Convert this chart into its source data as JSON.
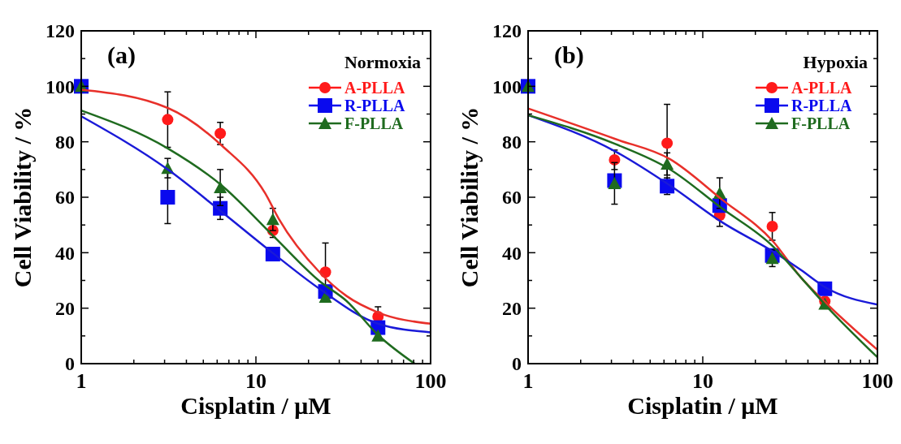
{
  "chart_data": [
    {
      "type": "scatter",
      "xlabel": "Cisplatin / μM",
      "ylabel": "Cell Viability / %",
      "legend_title": "Normoxia",
      "annotations": [
        "(a)"
      ],
      "log": "x",
      "legend": "top right",
      "grid": false,
      "xlim": [
        1,
        100
      ],
      "xticks": [
        1,
        {
          "value": 2,
          "label": null
        },
        {
          "value": 3,
          "label": null
        },
        {
          "value": 4,
          "label": null
        },
        {
          "value": 5,
          "label": null
        },
        {
          "value": 6,
          "label": null
        },
        {
          "value": 7,
          "label": null
        },
        {
          "value": 8,
          "label": null
        },
        {
          "value": 9,
          "label": null
        },
        10,
        {
          "value": 20,
          "label": null
        },
        {
          "value": 30,
          "label": null
        },
        {
          "value": 40,
          "label": null
        },
        {
          "value": 50,
          "label": null
        },
        {
          "value": 60,
          "label": null
        },
        {
          "value": 70,
          "label": null
        },
        {
          "value": 80,
          "label": null
        },
        {
          "value": 90,
          "label": null
        },
        100
      ],
      "ylim": [
        0,
        120
      ],
      "yticks": [
        0,
        {
          "value": 10,
          "label": null
        },
        20,
        {
          "value": 30,
          "label": null
        },
        40,
        {
          "value": 50,
          "label": null
        },
        60,
        {
          "value": 70,
          "label": null
        },
        80,
        {
          "value": 90,
          "label": null
        },
        100,
        {
          "value": 110,
          "label": null
        },
        120
      ],
      "x": [
        1,
        3.125,
        6.25,
        12.5,
        25,
        50
      ],
      "series": [
        {
          "type": "line",
          "color": "#e8302a",
          "x": [
            1,
            3.13,
            6.41,
            11.3,
            13.5,
            23.1,
            33,
            49.9,
            100
          ],
          "values": [
            98.8,
            92.2,
            78.5,
            61.4,
            52.3,
            33,
            24.4,
            18.5,
            14.4
          ]
        },
        {
          "type": "line",
          "color": "#1a1ad8",
          "x": [
            1,
            3.13,
            6.41,
            12.6,
            23.1,
            49.9,
            100
          ],
          "values": [
            89.2,
            70,
            54.6,
            39.7,
            27,
            14.4,
            11.3
          ]
        },
        {
          "type": "line",
          "color": "#1f6b1f",
          "x": [
            1,
            3.13,
            6.41,
            12.6,
            23.1,
            33,
            49.9,
            81
          ],
          "values": [
            91.3,
            77.6,
            64.1,
            46,
            29.8,
            22.6,
            10.4,
            0
          ]
        },
        {
          "name": "A-PLLA",
          "color": "#ff1a1a",
          "marker": "circle",
          "values": [
            null,
            88,
            83,
            48,
            33,
            17
          ],
          "errors": [
            null,
            10,
            4,
            2.5,
            10.5,
            3.5
          ]
        },
        {
          "name": "R-PLLA",
          "color": "#0a0aee",
          "marker": "square",
          "values": [
            100,
            60,
            56,
            39.5,
            26,
            13
          ],
          "errors": [
            null,
            9.5,
            4,
            null,
            null,
            null
          ]
        },
        {
          "name": "F-PLLA",
          "color": "#1f6b1f",
          "marker": "triangle",
          "values": [
            100,
            70.5,
            63.5,
            52,
            24,
            10
          ],
          "errors": [
            null,
            3.5,
            6.5,
            4,
            null,
            null
          ]
        }
      ]
    },
    {
      "type": "scatter",
      "xlabel": "Cisplatin / μM",
      "ylabel": "Cell Viability / %",
      "legend_title": "Hypoxia",
      "annotations": [
        "(b)"
      ],
      "log": "x",
      "legend": "top right",
      "grid": false,
      "xlim": [
        1,
        100
      ],
      "xticks": [
        1,
        {
          "value": 2,
          "label": null
        },
        {
          "value": 3,
          "label": null
        },
        {
          "value": 4,
          "label": null
        },
        {
          "value": 5,
          "label": null
        },
        {
          "value": 6,
          "label": null
        },
        {
          "value": 7,
          "label": null
        },
        {
          "value": 8,
          "label": null
        },
        {
          "value": 9,
          "label": null
        },
        10,
        {
          "value": 20,
          "label": null
        },
        {
          "value": 30,
          "label": null
        },
        {
          "value": 40,
          "label": null
        },
        {
          "value": 50,
          "label": null
        },
        {
          "value": 60,
          "label": null
        },
        {
          "value": 70,
          "label": null
        },
        {
          "value": 80,
          "label": null
        },
        {
          "value": 90,
          "label": null
        },
        100
      ],
      "ylim": [
        0,
        120
      ],
      "yticks": [
        0,
        {
          "value": 10,
          "label": null
        },
        20,
        {
          "value": 30,
          "label": null
        },
        40,
        {
          "value": 50,
          "label": null
        },
        60,
        {
          "value": 70,
          "label": null
        },
        80,
        {
          "value": 90,
          "label": null
        },
        100,
        {
          "value": 110,
          "label": null
        },
        120
      ],
      "x": [
        1,
        3.125,
        6.25,
        12.5,
        25,
        50
      ],
      "series": [
        {
          "type": "line",
          "color": "#e8302a",
          "x": [
            1,
            3.16,
            6.47,
            12.8,
            25.4,
            36.3,
            50.1,
            100
          ],
          "values": [
            92,
            81,
            73.8,
            59.3,
            43.9,
            31.2,
            22.2,
            5
          ]
        },
        {
          "type": "line",
          "color": "#1a1ad8",
          "x": [
            1,
            3.16,
            6.47,
            12.8,
            25.4,
            36.3,
            50.1,
            100
          ],
          "values": [
            89.6,
            76.5,
            64.3,
            51.1,
            40.3,
            33.9,
            27.6,
            21.3
          ]
        },
        {
          "type": "line",
          "color": "#1f6b1f",
          "x": [
            1,
            3.16,
            6.47,
            12.8,
            25.4,
            36.3,
            50.1,
            100
          ],
          "values": [
            89.6,
            79.2,
            70.1,
            56.1,
            42.1,
            31.2,
            21.3,
            2.3
          ]
        },
        {
          "name": "A-PLLA",
          "color": "#ff1a1a",
          "marker": "circle",
          "values": [
            null,
            73.5,
            79.5,
            53.5,
            49.5,
            22.5
          ],
          "errors": [
            null,
            3.5,
            14,
            4,
            5,
            null
          ]
        },
        {
          "name": "R-PLLA",
          "color": "#0a0aee",
          "marker": "square",
          "values": [
            100,
            66,
            64,
            57,
            39,
            27
          ],
          "errors": [
            null,
            null,
            3,
            null,
            null,
            null
          ]
        },
        {
          "name": "F-PLLA",
          "color": "#1f6b1f",
          "marker": "triangle",
          "values": [
            100,
            65,
            72,
            61.5,
            38,
            21.5
          ],
          "errors": [
            null,
            7.5,
            4,
            5.5,
            3,
            null
          ]
        }
      ]
    }
  ]
}
